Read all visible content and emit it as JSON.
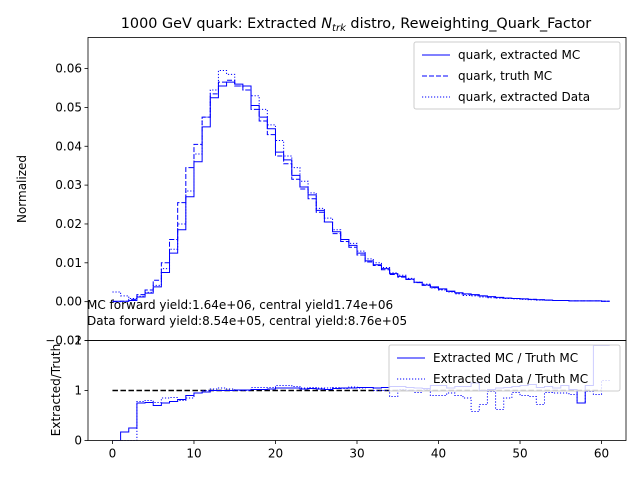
{
  "figure": {
    "title_main": "1000 GeV quark: Extracted ",
    "title_var": "N",
    "title_sub": "trk",
    "title_rest": " distro, Reweighting_Quark_Factor",
    "annotation_mc": "MC forward yield:1.64e+06, central yield1.74e+06",
    "annotation_data": "Data forward yield:8.54e+05, central yield:8.76e+05",
    "colors": {
      "series": "#0000ff",
      "reference_line": "#000000",
      "axis": "#000000"
    }
  },
  "chart_data": [
    {
      "type": "line",
      "drawstyle": "steps-post",
      "ylabel": "Normalized",
      "xlim": [
        -3,
        63
      ],
      "ylim": [
        -0.01,
        0.068
      ],
      "yticks": [
        0.0,
        0.01,
        0.02,
        0.03,
        0.04,
        0.05,
        0.06
      ],
      "ytick_labels": [
        "0.00",
        "0.01",
        "0.02",
        "0.03",
        "0.04",
        "0.05",
        "0.06"
      ],
      "extra_ytick_label": "−0.01",
      "legend_position": "top-right",
      "x": [
        0,
        1,
        2,
        3,
        4,
        5,
        6,
        7,
        8,
        9,
        10,
        11,
        12,
        13,
        14,
        15,
        16,
        17,
        18,
        19,
        20,
        21,
        22,
        23,
        24,
        25,
        26,
        27,
        28,
        29,
        30,
        31,
        32,
        33,
        34,
        35,
        36,
        37,
        38,
        39,
        40,
        41,
        42,
        43,
        44,
        45,
        46,
        47,
        48,
        49,
        50,
        51,
        52,
        53,
        54,
        55,
        56,
        57,
        58,
        59,
        60
      ],
      "series": [
        {
          "name": "quark, extracted MC",
          "linestyle": "solid",
          "values": [
            0.0001,
            0.0001,
            0.0003,
            0.0012,
            0.0022,
            0.0038,
            0.0075,
            0.0125,
            0.0185,
            0.027,
            0.036,
            0.045,
            0.0525,
            0.0555,
            0.0565,
            0.056,
            0.0555,
            0.0505,
            0.0475,
            0.0445,
            0.0385,
            0.0365,
            0.0325,
            0.0295,
            0.0275,
            0.0235,
            0.0205,
            0.018,
            0.016,
            0.0145,
            0.0125,
            0.0105,
            0.0095,
            0.0085,
            0.0072,
            0.0065,
            0.0058,
            0.005,
            0.0043,
            0.0038,
            0.0033,
            0.0027,
            0.0023,
            0.002,
            0.0018,
            0.0015,
            0.0013,
            0.0011,
            0.0009,
            0.0008,
            0.0007,
            0.0006,
            0.0005,
            0.0004,
            0.0003,
            0.0003,
            0.0002,
            0.0002,
            0.0002,
            0.0002,
            0.0001
          ]
        },
        {
          "name": "quark, truth MC",
          "linestyle": "dashed",
          "values": [
            0.0,
            0.0001,
            0.0006,
            0.0018,
            0.003,
            0.0055,
            0.01,
            0.016,
            0.0255,
            0.0345,
            0.0405,
            0.0475,
            0.0535,
            0.0565,
            0.057,
            0.0555,
            0.0545,
            0.0495,
            0.0465,
            0.043,
            0.0375,
            0.0355,
            0.0315,
            0.029,
            0.0265,
            0.023,
            0.0205,
            0.0175,
            0.0155,
            0.014,
            0.012,
            0.0102,
            0.0093,
            0.0082,
            0.007,
            0.0063,
            0.0057,
            0.0049,
            0.0042,
            0.0036,
            0.0032,
            0.0026,
            0.0022,
            0.0019,
            0.0017,
            0.0015,
            0.0012,
            0.001,
            0.0009,
            0.0008,
            0.0007,
            0.0006,
            0.0005,
            0.0004,
            0.0003,
            0.0003,
            0.0002,
            0.0002,
            0.0002,
            0.0002,
            0.0001
          ]
        },
        {
          "name": "quark, extracted Data",
          "linestyle": "dotted",
          "values": [
            0.0025,
            0.0015,
            0.0008,
            0.0014,
            0.0024,
            0.0042,
            0.0085,
            0.0135,
            0.02,
            0.0285,
            0.038,
            0.0475,
            0.0545,
            0.0595,
            0.0585,
            0.0555,
            0.0545,
            0.053,
            0.0495,
            0.0455,
            0.0415,
            0.0375,
            0.0345,
            0.031,
            0.028,
            0.024,
            0.0215,
            0.0185,
            0.016,
            0.015,
            0.013,
            0.011,
            0.01,
            0.0088,
            0.0074,
            0.0068,
            0.006,
            0.005,
            0.0045,
            0.0035,
            0.003,
            0.0025,
            0.002,
            0.0016,
            0.0015,
            0.0012,
            0.001,
            0.0009,
            0.0008,
            0.0007,
            0.0006,
            0.0005,
            0.0004,
            0.0004,
            0.0003,
            0.0003,
            0.0002,
            0.0002,
            0.0002,
            0.0002,
            0.0001
          ]
        }
      ]
    },
    {
      "type": "line",
      "drawstyle": "steps-post",
      "xlabel": "",
      "ylabel": "Extracted/Truth",
      "xlim": [
        -3,
        63
      ],
      "ylim": [
        0,
        2
      ],
      "xticks": [
        0,
        10,
        20,
        30,
        40,
        50,
        60
      ],
      "yticks": [
        0,
        1
      ],
      "ytick_labels": [
        "0",
        "1"
      ],
      "extra_ytick_label": "2",
      "reference_line": 1,
      "legend_position": "top-right",
      "x": [
        0,
        1,
        2,
        3,
        4,
        5,
        6,
        7,
        8,
        9,
        10,
        11,
        12,
        13,
        14,
        15,
        16,
        17,
        18,
        19,
        20,
        21,
        22,
        23,
        24,
        25,
        26,
        27,
        28,
        29,
        30,
        31,
        32,
        33,
        34,
        35,
        36,
        37,
        38,
        39,
        40,
        41,
        42,
        43,
        44,
        45,
        46,
        47,
        48,
        49,
        50,
        51,
        52,
        53,
        54,
        55,
        56,
        57,
        58,
        59,
        60
      ],
      "series": [
        {
          "name": "Extracted MC / Truth MC",
          "linestyle": "solid",
          "values": [
            0.0,
            0.17,
            0.25,
            0.75,
            0.76,
            0.7,
            0.75,
            0.78,
            0.82,
            0.9,
            0.95,
            0.97,
            1.0,
            1.0,
            1.0,
            1.01,
            1.01,
            1.02,
            1.02,
            1.03,
            1.05,
            1.05,
            1.05,
            1.03,
            1.04,
            1.03,
            1.02,
            1.04,
            1.05,
            1.05,
            1.06,
            1.06,
            1.05,
            1.06,
            1.08,
            1.08,
            1.06,
            1.05,
            1.04,
            1.1,
            1.1,
            1.05,
            1.08,
            1.08,
            1.15,
            1.0,
            1.02,
            1.05,
            1.06,
            1.08,
            1.1,
            1.12,
            1.06,
            1.08,
            1.05,
            1.1,
            1.02,
            0.75,
            1.1,
            1.9,
            1.9
          ]
        },
        {
          "name": "Extracted Data / Truth MC",
          "linestyle": "dotted",
          "values": [
            0.0,
            0.0,
            0.0,
            0.78,
            0.8,
            0.76,
            0.85,
            0.86,
            0.8,
            0.85,
            0.95,
            1.0,
            1.03,
            1.05,
            1.03,
            1.0,
            1.0,
            1.06,
            1.06,
            1.06,
            1.1,
            1.1,
            1.08,
            1.05,
            1.06,
            1.05,
            1.05,
            1.06,
            1.04,
            1.07,
            1.05,
            1.06,
            1.0,
            1.0,
            0.88,
            1.02,
            1.0,
            0.96,
            1.02,
            0.9,
            0.9,
            0.95,
            0.9,
            0.85,
            0.58,
            0.72,
            0.98,
            0.62,
            0.85,
            0.96,
            0.9,
            0.88,
            0.72,
            0.96,
            0.95,
            0.95,
            0.92,
            0.75,
            0.98,
            0.92,
            1.2
          ]
        }
      ]
    }
  ]
}
